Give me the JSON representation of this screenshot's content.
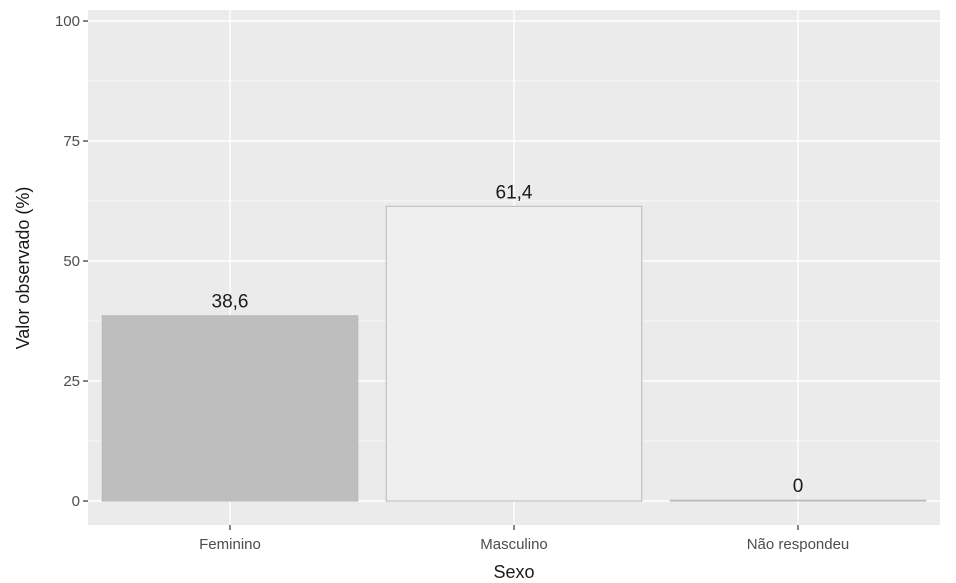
{
  "chart_data": {
    "type": "bar",
    "categories": [
      "Feminino",
      "Masculino",
      "Não respondeu"
    ],
    "values": [
      38.6,
      61.4,
      0
    ],
    "data_labels": [
      "38,6",
      "61,4",
      "0"
    ],
    "xlabel": "Sexo",
    "ylabel": "Valor observado (%)",
    "ylim": [
      0,
      100
    ],
    "yticks": [
      0,
      25,
      50,
      75,
      100
    ],
    "ytick_labels": [
      "0",
      "25",
      "50",
      "75",
      "100"
    ],
    "grid": true,
    "colors": {
      "panel_background": "#ebebeb",
      "gridline": "#ffffff",
      "bar_fills": [
        "#bebebe",
        "#efefef",
        "#e0e0e0"
      ],
      "bar_stroke": "#b8b8b8"
    }
  }
}
